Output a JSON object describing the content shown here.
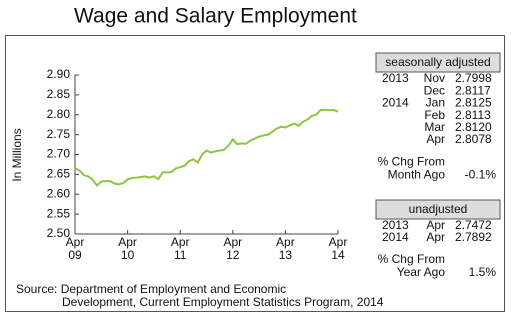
{
  "chart_data": {
    "type": "line",
    "title": "Wage and Salary Employment",
    "y_label": "In Millions",
    "categories": [
      "Apr\n09",
      null,
      null,
      null,
      null,
      null,
      null,
      null,
      null,
      null,
      null,
      null,
      "Apr\n10",
      null,
      null,
      null,
      null,
      null,
      null,
      null,
      null,
      null,
      null,
      null,
      "Apr\n11",
      null,
      null,
      null,
      null,
      null,
      null,
      null,
      null,
      null,
      null,
      null,
      "Apr\n12",
      null,
      null,
      null,
      null,
      null,
      null,
      null,
      null,
      null,
      null,
      null,
      "Apr\n13",
      null,
      null,
      null,
      null,
      null,
      null,
      null,
      null,
      null,
      null,
      null,
      "Apr\n14"
    ],
    "values": [
      2.665,
      2.66,
      2.648,
      2.645,
      2.637,
      2.622,
      2.632,
      2.633,
      2.633,
      2.627,
      2.625,
      2.628,
      2.637,
      2.641,
      2.642,
      2.643,
      2.645,
      2.642,
      2.645,
      2.638,
      2.655,
      2.655,
      2.656,
      2.665,
      2.668,
      2.672,
      2.683,
      2.688,
      2.68,
      2.7,
      2.71,
      2.705,
      2.708,
      2.71,
      2.712,
      2.722,
      2.738,
      2.726,
      2.728,
      2.727,
      2.735,
      2.74,
      2.745,
      2.748,
      2.75,
      2.757,
      2.765,
      2.77,
      2.768,
      2.773,
      2.778,
      2.772,
      2.782,
      2.788,
      2.797,
      2.7998,
      2.8117,
      2.8125,
      2.8113,
      2.812,
      2.8078
    ],
    "color": "#8dc63f",
    "ylim": [
      2.5,
      2.9
    ],
    "yticks": [
      {
        "value": 2.5,
        "label": "2.50"
      },
      {
        "value": 2.55,
        "label": "2.55"
      },
      {
        "value": 2.6,
        "label": "2.60"
      },
      {
        "value": 2.65,
        "label": "2.65"
      },
      {
        "value": 2.7,
        "label": "2.70"
      },
      {
        "value": 2.75,
        "label": "2.75"
      },
      {
        "value": 2.8,
        "label": "2.80"
      },
      {
        "value": 2.85,
        "label": "2.85"
      },
      {
        "value": 2.9,
        "label": "2.90"
      }
    ],
    "grid": false,
    "source": [
      "Source:  Department of Employment and Economic",
      "Development, Current Employment Statistics Program, 2014"
    ]
  },
  "side_panel": {
    "seasonal": {
      "header": "seasonally adjusted",
      "rows": [
        [
          "2013",
          "Nov",
          "2.7998"
        ],
        [
          null,
          "Dec",
          "2.8117"
        ],
        [
          "2014",
          "Jan",
          "2.8125"
        ],
        [
          null,
          "Feb",
          "2.8113"
        ],
        [
          null,
          "Mar",
          "2.8120"
        ],
        [
          null,
          "Apr",
          "2.8078"
        ]
      ],
      "change_label": [
        "% Chg From",
        "Month Ago"
      ],
      "change_value": "-0.1%"
    },
    "unadjusted": {
      "header": "unadjusted",
      "rows": [
        [
          "2013",
          "Apr",
          "2.7472"
        ],
        [
          "2014",
          "Apr",
          "2.7892"
        ]
      ],
      "change_label": [
        "% Chg From",
        "Year Ago"
      ],
      "change_value": "1.5%"
    }
  }
}
